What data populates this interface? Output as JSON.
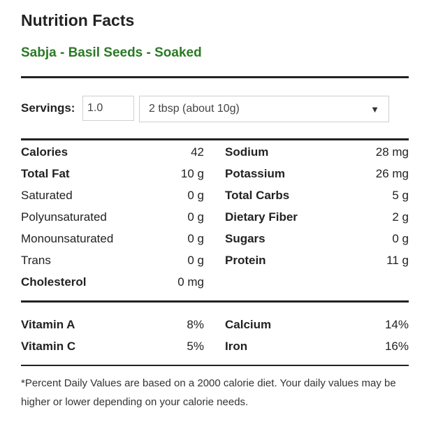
{
  "title": "Nutrition Facts",
  "food_name": "Sabja - Basil Seeds - Soaked",
  "servings": {
    "label": "Servings:",
    "quantity": "1.0",
    "unit": "2 tbsp (about 10g)",
    "caret_icon": "▼"
  },
  "nutrients_left": [
    {
      "label": "Calories",
      "value": "42",
      "bold": true
    },
    {
      "label": "Total Fat",
      "value": "10 g",
      "bold": true
    },
    {
      "label": "Saturated",
      "value": "0 g",
      "bold": false
    },
    {
      "label": "Polyunsaturated",
      "value": "0 g",
      "bold": false
    },
    {
      "label": "Monounsaturated",
      "value": "0 g",
      "bold": false
    },
    {
      "label": "Trans",
      "value": "0 g",
      "bold": false
    },
    {
      "label": "Cholesterol",
      "value": "0 mg",
      "bold": true
    }
  ],
  "nutrients_right": [
    {
      "label": "Sodium",
      "value": "28 mg",
      "bold": true
    },
    {
      "label": "Potassium",
      "value": "26 mg",
      "bold": true
    },
    {
      "label": "Total Carbs",
      "value": "5 g",
      "bold": true
    },
    {
      "label": "Dietary Fiber",
      "value": "2 g",
      "bold": true
    },
    {
      "label": "Sugars",
      "value": "0 g",
      "bold": true
    },
    {
      "label": "Protein",
      "value": "11 g",
      "bold": true
    }
  ],
  "vitamins_left": [
    {
      "label": "Vitamin A",
      "value": "8%"
    },
    {
      "label": "Vitamin C",
      "value": "5%"
    }
  ],
  "vitamins_right": [
    {
      "label": "Calcium",
      "value": "14%"
    },
    {
      "label": "Iron",
      "value": "16%"
    }
  ],
  "footnote": "*Percent Daily Values are based on a 2000 calorie diet. Your daily values may be higher or lower depending on your calorie needs.",
  "colors": {
    "subtitle": "#2a7a25",
    "rule": "#222222",
    "text": "#222222"
  }
}
